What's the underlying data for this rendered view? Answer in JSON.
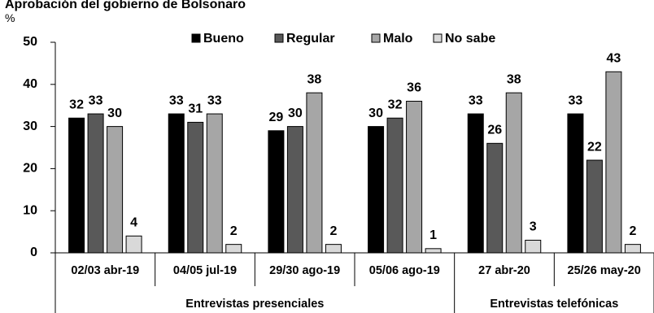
{
  "chart_data": {
    "type": "bar",
    "title": "Aprobación del gobierno de Bolsonaro",
    "ylabel": "%",
    "ylim": [
      0,
      50
    ],
    "yticks": [
      0,
      10,
      20,
      30,
      40,
      50
    ],
    "grid": false,
    "legend_position": "top",
    "categories": [
      "02/03 abr-19",
      "04/05 jul-19",
      "29/30 ago-19",
      "05/06 ago-19",
      "27 abr-20",
      "25/26 may-20"
    ],
    "groups": [
      {
        "label": "Entrevistas presenciales",
        "span": [
          0,
          3
        ]
      },
      {
        "label": "Entrevistas telefónicas",
        "span": [
          4,
          5
        ]
      }
    ],
    "series": [
      {
        "name": "Bueno",
        "color": "#000000",
        "values": [
          32,
          33,
          29,
          30,
          33,
          33
        ]
      },
      {
        "name": "Regular",
        "color": "#595959",
        "values": [
          33,
          31,
          30,
          32,
          26,
          22
        ]
      },
      {
        "name": "Malo",
        "color": "#a6a6a6",
        "values": [
          30,
          33,
          38,
          36,
          38,
          43
        ]
      },
      {
        "name": "No sabe",
        "color": "#d9d9d9",
        "values": [
          4,
          2,
          2,
          1,
          3,
          2
        ]
      }
    ]
  }
}
